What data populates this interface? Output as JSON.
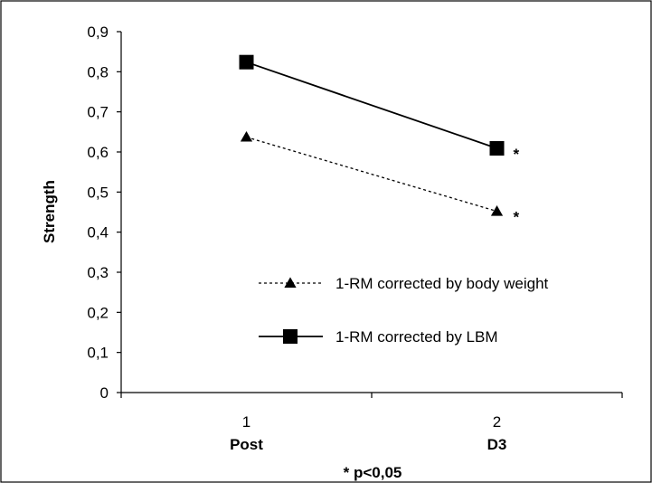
{
  "chart_data": {
    "type": "line",
    "categories": [
      "1",
      "2"
    ],
    "category_sublabels": [
      "Post",
      "D3"
    ],
    "ylabel": "Strength",
    "ylim": [
      0,
      0.9
    ],
    "yticks": [
      "0",
      "0,1",
      "0,2",
      "0,3",
      "0,4",
      "0,5",
      "0,6",
      "0,7",
      "0,8",
      "0,9"
    ],
    "grid": false,
    "legend_position": "right",
    "footnote": "* p<0,05",
    "significance_marker": "*",
    "series": [
      {
        "name": "1-RM corrected by body weight",
        "values": [
          0.637,
          0.452
        ],
        "marker": "triangle",
        "line_style": "dashed",
        "significant": [
          false,
          true
        ],
        "color": "#000000"
      },
      {
        "name": "1-RM corrected by LBM",
        "values": [
          0.824,
          0.609
        ],
        "marker": "square",
        "line_style": "solid",
        "significant": [
          false,
          true
        ],
        "color": "#000000"
      }
    ]
  }
}
